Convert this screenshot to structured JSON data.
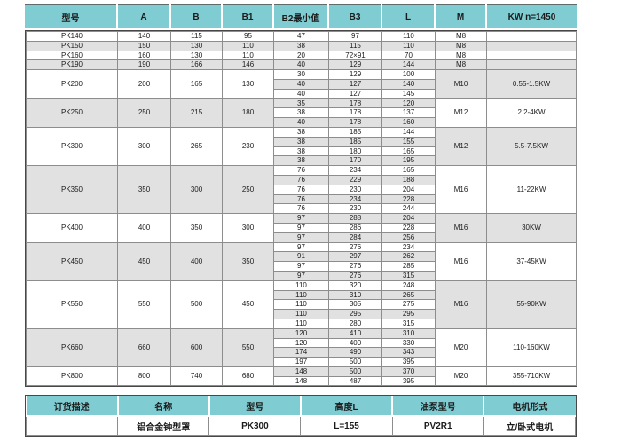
{
  "colors": {
    "header_bg": "#7fccd2",
    "stripe_gray": "#e1e1e1",
    "grid_line": "#8d8d8d",
    "outer_border": "#474747"
  },
  "main_table": {
    "headers": [
      "型号",
      "A",
      "B",
      "B1",
      "B2最小值",
      "B3",
      "L",
      "M",
      "KW n=1450"
    ],
    "groups": [
      {
        "model": "PK140",
        "a": "140",
        "b": "115",
        "b1": "95",
        "sub_rows": [
          [
            "47",
            "97",
            "110"
          ]
        ],
        "m": "M8",
        "kw": ""
      },
      {
        "model": "PK150",
        "a": "150",
        "b": "130",
        "b1": "110",
        "sub_rows": [
          [
            "38",
            "115",
            "110"
          ]
        ],
        "m": "M8",
        "kw": ""
      },
      {
        "model": "PK160",
        "a": "160",
        "b": "130",
        "b1": "110",
        "sub_rows": [
          [
            "20",
            "72×91",
            "70"
          ]
        ],
        "m": "M8",
        "kw": ""
      },
      {
        "model": "PK190",
        "a": "190",
        "b": "166",
        "b1": "146",
        "sub_rows": [
          [
            "40",
            "129",
            "144"
          ]
        ],
        "m": "M8",
        "kw": ""
      },
      {
        "model": "PK200",
        "a": "200",
        "b": "165",
        "b1": "130",
        "sub_rows": [
          [
            "30",
            "129",
            "100"
          ],
          [
            "40",
            "127",
            "140"
          ],
          [
            "40",
            "127",
            "145"
          ]
        ],
        "m": "M10",
        "kw": "0.55-1.5KW"
      },
      {
        "model": "PK250",
        "a": "250",
        "b": "215",
        "b1": "180",
        "sub_rows": [
          [
            "35",
            "178",
            "120"
          ],
          [
            "38",
            "178",
            "137"
          ],
          [
            "40",
            "178",
            "160"
          ]
        ],
        "m": "M12",
        "kw": "2.2-4KW"
      },
      {
        "model": "PK300",
        "a": "300",
        "b": "265",
        "b1": "230",
        "sub_rows": [
          [
            "38",
            "185",
            "144"
          ],
          [
            "38",
            "185",
            "155"
          ],
          [
            "38",
            "180",
            "165"
          ],
          [
            "38",
            "170",
            "195"
          ]
        ],
        "m": "M12",
        "kw": "5.5-7.5KW"
      },
      {
        "model": "PK350",
        "a": "350",
        "b": "300",
        "b1": "250",
        "sub_rows": [
          [
            "76",
            "234",
            "165"
          ],
          [
            "76",
            "229",
            "188"
          ],
          [
            "76",
            "230",
            "204"
          ],
          [
            "76",
            "234",
            "228"
          ],
          [
            "76",
            "230",
            "244"
          ]
        ],
        "m": "M16",
        "kw": "11-22KW"
      },
      {
        "model": "PK400",
        "a": "400",
        "b": "350",
        "b1": "300",
        "sub_rows": [
          [
            "97",
            "288",
            "204"
          ],
          [
            "97",
            "286",
            "228"
          ],
          [
            "97",
            "284",
            "256"
          ]
        ],
        "m": "M16",
        "kw": "30KW"
      },
      {
        "model": "PK450",
        "a": "450",
        "b": "400",
        "b1": "350",
        "sub_rows": [
          [
            "97",
            "276",
            "234"
          ],
          [
            "91",
            "297",
            "262"
          ],
          [
            "97",
            "276",
            "285"
          ],
          [
            "97",
            "276",
            "315"
          ]
        ],
        "m": "M16",
        "kw": "37-45KW"
      },
      {
        "model": "PK550",
        "a": "550",
        "b": "500",
        "b1": "450",
        "sub_rows": [
          [
            "110",
            "320",
            "248"
          ],
          [
            "110",
            "310",
            "265"
          ],
          [
            "110",
            "305",
            "275"
          ],
          [
            "110",
            "295",
            "295"
          ],
          [
            "110",
            "280",
            "315"
          ]
        ],
        "m": "M16",
        "kw": "55-90KW"
      },
      {
        "model": "PK660",
        "a": "660",
        "b": "600",
        "b1": "550",
        "sub_rows": [
          [
            "120",
            "410",
            "310"
          ],
          [
            "120",
            "400",
            "330"
          ],
          [
            "174",
            "490",
            "343"
          ],
          [
            "197",
            "500",
            "395"
          ]
        ],
        "m": "M20",
        "kw": "110-160KW"
      },
      {
        "model": "PK800",
        "a": "800",
        "b": "740",
        "b1": "680",
        "sub_rows": [
          [
            "148",
            "500",
            "370"
          ],
          [
            "148",
            "487",
            "395"
          ]
        ],
        "m": "M20",
        "kw": "355-710KW"
      }
    ]
  },
  "order_table": {
    "headers": [
      "订货描述",
      "名称",
      "型号",
      "高度L",
      "油泵型号",
      "电机形式"
    ],
    "values": [
      "",
      "铝合金钟型罩",
      "PK300",
      "L=155",
      "PV2R1",
      "立/卧式电机"
    ]
  }
}
